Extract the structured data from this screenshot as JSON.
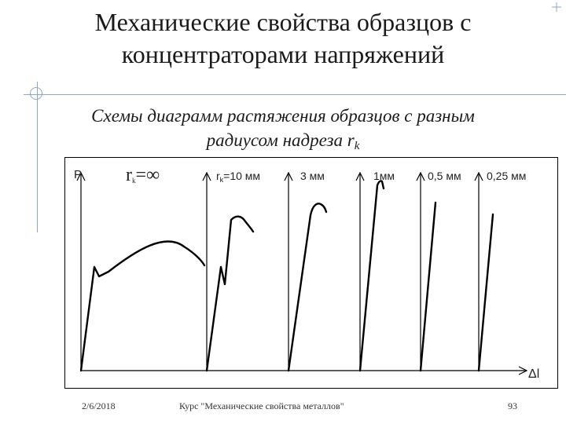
{
  "slide": {
    "title_line1": "Механические свойства образцов с",
    "title_line2": "концентраторами напряжений",
    "subtitle_line1": "Схемы диаграмм растяжения образцов с разным",
    "subtitle_line2": "радиусом надреза r",
    "subtitle_sub": "k"
  },
  "diagram": {
    "y_axis_label": "P",
    "x_axis_label": "Δl",
    "curves": [
      {
        "r_label": "r",
        "r_sub": "k",
        "r_value": "=∞"
      },
      {
        "r_label": "r",
        "r_sub": "k",
        "r_value": "=10 мм"
      },
      {
        "r_text": "3 мм"
      },
      {
        "r_text": "1мм"
      },
      {
        "r_text": "0,5 мм"
      },
      {
        "r_text": "0,25 мм"
      }
    ],
    "line_color": "#000000"
  },
  "footer": {
    "date": "2/6/2018",
    "course": "Курс \"Механические свойства металлов\"",
    "page": "93"
  },
  "theme": {
    "accent": "#8fa6c8"
  }
}
